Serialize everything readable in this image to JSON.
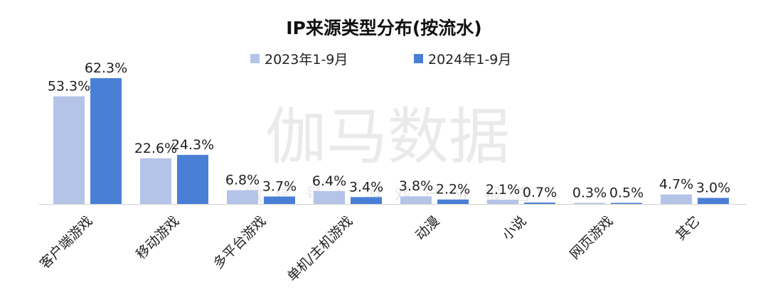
{
  "colors": {
    "series_2023": "#B4C3E8",
    "series_2024": "#4A7FD6",
    "axis": "#D0D0D0"
  },
  "watermark": {
    "main": "伽马数据",
    "sub": "微信号：游戏产业报告"
  },
  "chart_data": {
    "type": "bar",
    "title": "IP来源类型分布(按流水)",
    "categories": [
      "客户端游戏",
      "移动游戏",
      "多平台游戏",
      "单机/主机游戏",
      "动漫",
      "小说",
      "网页游戏",
      "其它"
    ],
    "series": [
      {
        "name": "2023年1-9月",
        "values": [
          53.3,
          22.6,
          6.8,
          6.4,
          3.8,
          2.1,
          0.3,
          4.7
        ],
        "labels": [
          "53.3%",
          "22.6%",
          "6.8%",
          "6.4%",
          "3.8%",
          "2.1%",
          "0.3%",
          "4.7%"
        ]
      },
      {
        "name": "2024年1-9月",
        "values": [
          62.3,
          24.3,
          3.7,
          3.4,
          2.2,
          0.7,
          0.5,
          3.0
        ],
        "labels": [
          "62.3%",
          "24.3%",
          "3.7%",
          "3.4%",
          "2.2%",
          "0.7%",
          "0.5%",
          "3.0%"
        ]
      }
    ],
    "ylim": [
      0,
      62.3
    ],
    "legend_position": "top-center",
    "grid": false
  }
}
